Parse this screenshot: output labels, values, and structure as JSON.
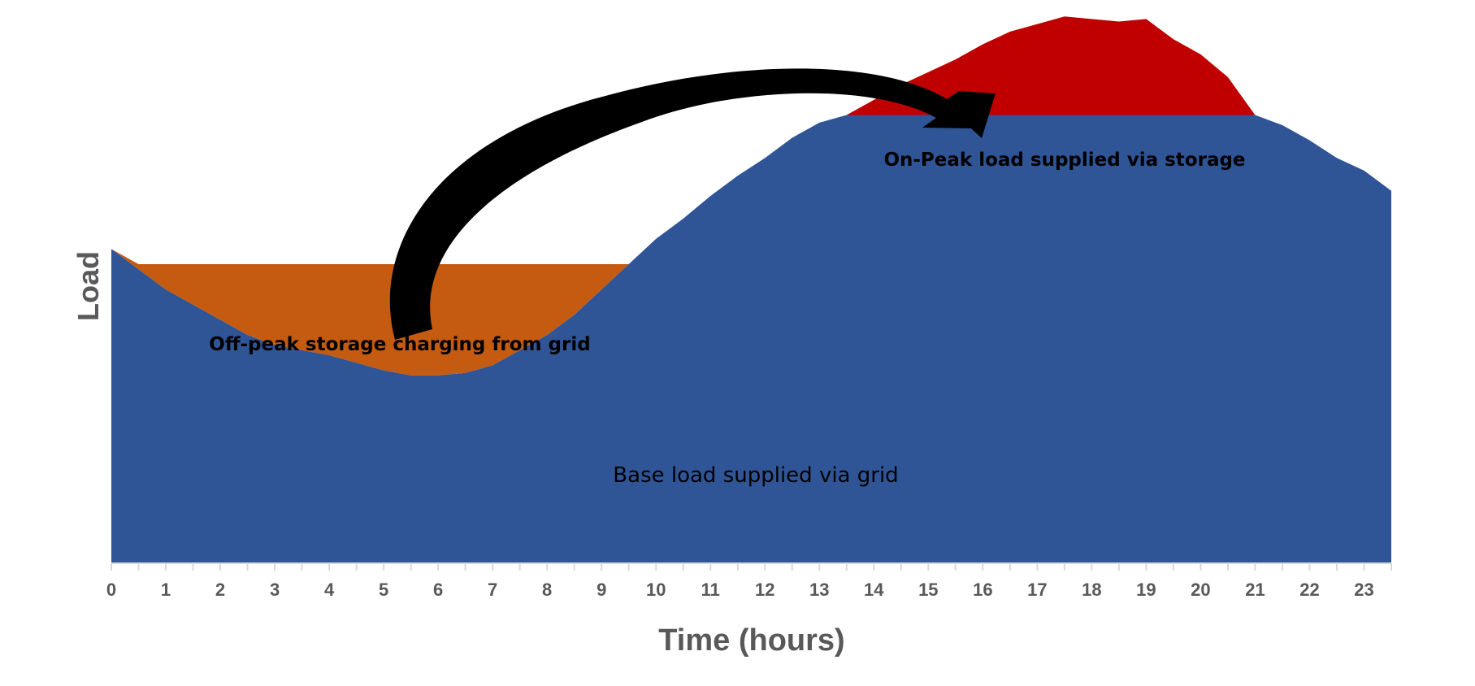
{
  "chart_data": {
    "type": "area",
    "xlabel": "Time (hours)",
    "ylabel": "Load",
    "x_ticks": [
      "0",
      "1",
      "2",
      "3",
      "4",
      "5",
      "6",
      "7",
      "8",
      "9",
      "10",
      "11",
      "12",
      "13",
      "14",
      "15",
      "16",
      "17",
      "18",
      "19",
      "20",
      "21",
      "22",
      "23"
    ],
    "xlim": [
      0,
      23.5
    ],
    "ylim": [
      0,
      100
    ],
    "grid": false,
    "x": [
      0,
      0.5,
      1,
      1.5,
      2,
      2.5,
      3,
      3.5,
      4,
      4.5,
      5,
      5.5,
      6,
      6.5,
      7,
      7.5,
      8,
      8.5,
      9,
      9.5,
      10,
      10.5,
      11,
      11.5,
      12,
      12.5,
      13,
      13.5,
      14,
      14.5,
      15,
      15.5,
      16,
      16.5,
      17,
      17.5,
      18,
      18.5,
      19,
      19.5,
      20,
      20.5,
      21,
      21.5,
      22,
      22.5,
      23,
      23.5
    ],
    "series": [
      {
        "name": "Base load supplied via grid",
        "color": "#2f5597",
        "values": [
          62,
          58,
          54,
          51,
          48,
          45,
          43,
          42,
          41,
          39.5,
          38,
          37,
          37,
          37.5,
          39,
          42,
          45,
          49,
          54,
          59,
          64,
          68,
          72.5,
          76.5,
          80,
          84,
          87,
          88.5,
          88.5,
          88.5,
          88.5,
          88.5,
          88.5,
          88.5,
          88.5,
          88.5,
          88.5,
          88.5,
          88.5,
          88.5,
          88.5,
          88.5,
          88.5,
          86.5,
          83.5,
          80,
          77.5,
          73.5
        ]
      },
      {
        "name": "Off-peak storage charging from grid",
        "color": "#c55a11",
        "values": [
          0,
          1,
          5,
          8,
          11,
          14,
          16,
          17,
          18,
          19.5,
          21,
          22,
          22,
          21.5,
          20,
          17,
          14,
          10,
          5,
          0,
          0,
          0,
          0,
          0,
          0,
          0,
          0,
          0,
          0,
          0,
          0,
          0,
          0,
          0,
          0,
          0,
          0,
          0,
          0,
          0,
          0,
          0,
          0,
          0,
          0,
          0,
          0,
          0
        ]
      },
      {
        "name": "On-Peak load supplied via storage",
        "color": "#c00000",
        "values": [
          0,
          0,
          0,
          0,
          0,
          0,
          0,
          0,
          0,
          0,
          0,
          0,
          0,
          0,
          0,
          0,
          0,
          0,
          0,
          0,
          0,
          0,
          0,
          0,
          0,
          0,
          0,
          0,
          3,
          6,
          8.5,
          11,
          14,
          16.5,
          18,
          19.5,
          19,
          18.5,
          19,
          15,
          12,
          7.5,
          0,
          0,
          0,
          0,
          0,
          0
        ]
      }
    ],
    "annotations": {
      "arrow": {
        "from_series": "Off-peak storage charging from grid",
        "to_series": "On-Peak load supplied via storage",
        "color": "#000000"
      }
    }
  }
}
